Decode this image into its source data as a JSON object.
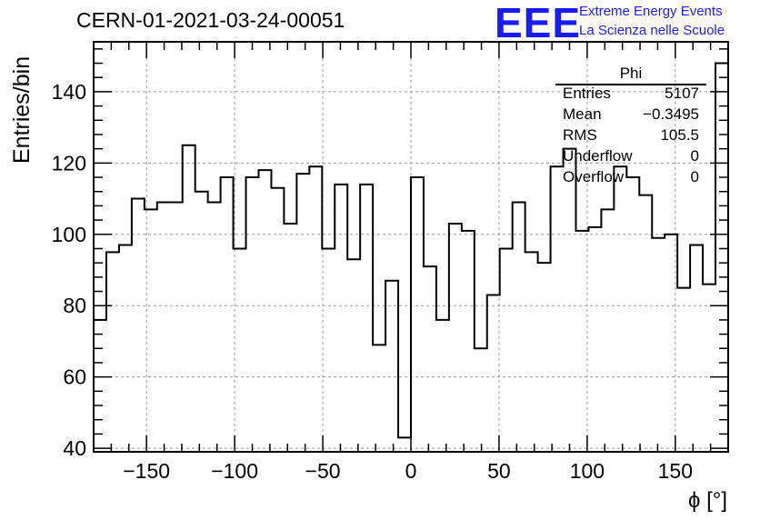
{
  "header": {
    "title": "CERN-01-2021-03-24-00051",
    "logo_text": "EEE",
    "logo_line1": "Extreme Energy Events",
    "logo_line2": "La Scienza nelle Scuole",
    "logo_color": "#1a1aff"
  },
  "stats_box": {
    "title": "Phi",
    "rows": [
      {
        "label": "Entries",
        "value": "5107"
      },
      {
        "label": "Mean",
        "value": "−0.3495"
      },
      {
        "label": "RMS",
        "value": "105.5"
      },
      {
        "label": "Underflow",
        "value": "0"
      },
      {
        "label": "Overflow",
        "value": "0"
      }
    ]
  },
  "chart_data": {
    "type": "histogram",
    "title": "CERN-01-2021-03-24-00051",
    "xlabel": "ϕ [°]",
    "ylabel": "Entries/bin",
    "xlim": [
      -180,
      180
    ],
    "ylim": [
      39,
      154
    ],
    "xticks": [
      -150,
      -100,
      -50,
      0,
      50,
      100,
      150
    ],
    "xtick_labels": [
      "−150",
      "−100",
      "−50",
      "0",
      "50",
      "100",
      "150"
    ],
    "yticks": [
      40,
      60,
      80,
      100,
      120,
      140
    ],
    "grid": true,
    "bin_width": 7.2,
    "bin_edges_start": -180,
    "values": [
      76,
      95,
      97,
      110,
      107,
      109,
      109,
      125,
      112,
      109,
      116,
      96,
      116,
      118,
      113,
      103,
      117,
      119,
      96,
      114,
      93,
      114,
      69,
      87,
      43,
      116,
      91,
      76,
      103,
      101,
      68,
      83,
      96,
      109,
      95,
      92,
      119,
      124,
      101,
      102,
      107,
      119,
      116,
      111,
      99,
      100,
      85,
      97,
      86,
      148
    ],
    "line_color": "#000000"
  }
}
